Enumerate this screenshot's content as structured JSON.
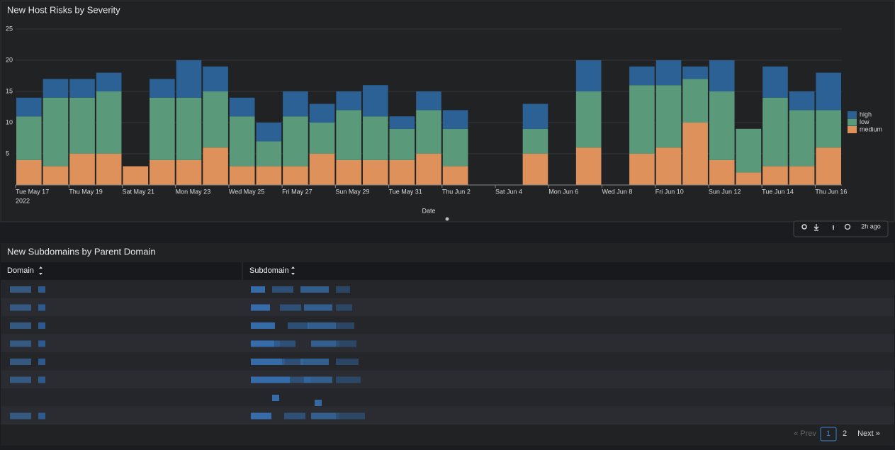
{
  "chart_data": {
    "type": "stacked_bar",
    "title": "New Host Risks by Severity",
    "x_label": "Date",
    "x_sublabel": "2022",
    "categories": [
      "Tue May 17",
      null,
      "Thu May 19",
      null,
      "Sat May 21",
      null,
      "Mon May 23",
      null,
      "Wed May 25",
      null,
      "Fri May 27",
      null,
      "Sun May 29",
      null,
      "Tue May 31",
      null,
      "Thu Jun 2",
      null,
      "Sat Jun 4",
      null,
      "Mon Jun 6",
      null,
      "Wed Jun 8",
      null,
      "Fri Jun 10",
      null,
      "Sun Jun 12",
      null,
      "Tue Jun 14",
      null,
      "Thu Jun 16"
    ],
    "series": [
      {
        "name": "high",
        "color": "#2b6194",
        "values": [
          3,
          3,
          3,
          3,
          0,
          3,
          6,
          4,
          3,
          3,
          4,
          3,
          3,
          5,
          2,
          3,
          3,
          0,
          0,
          4,
          0,
          5,
          0,
          3,
          4,
          2,
          5,
          0,
          5,
          3,
          6
        ]
      },
      {
        "name": "low",
        "color": "#5a9a7a",
        "values": [
          7,
          11,
          9,
          10,
          0,
          10,
          10,
          9,
          8,
          4,
          8,
          5,
          8,
          7,
          5,
          7,
          6,
          0,
          0,
          4,
          0,
          9,
          0,
          11,
          10,
          7,
          11,
          7,
          11,
          9,
          6
        ]
      },
      {
        "name": "medium",
        "color": "#df915b",
        "values": [
          4,
          3,
          5,
          5,
          3,
          4,
          4,
          6,
          3,
          3,
          3,
          5,
          4,
          4,
          4,
          5,
          3,
          0,
          0,
          5,
          0,
          6,
          0,
          5,
          6,
          10,
          4,
          2,
          3,
          3,
          6
        ]
      }
    ],
    "ylim": [
      0,
      25
    ],
    "yticks": [
      5,
      10,
      15,
      20,
      25
    ],
    "grid": true,
    "legend": "right"
  },
  "toolbar": {
    "refreshed": "2h ago"
  },
  "table": {
    "title": "New Subdomains by Parent Domain",
    "columns": [
      "Domain",
      "Subdomain"
    ]
  },
  "pagination": {
    "prev": "« Prev",
    "pages": [
      "1",
      "2"
    ],
    "next": "Next »"
  }
}
